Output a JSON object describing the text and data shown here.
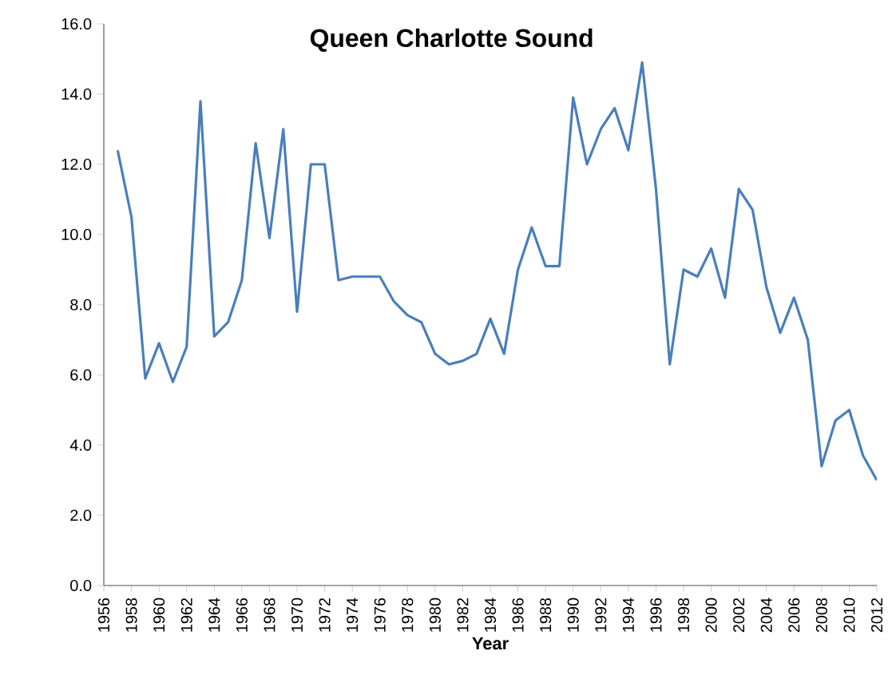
{
  "chart_data": {
    "type": "line",
    "title": "Queen Charlotte Sound",
    "xlabel": "Year",
    "x": [
      1957,
      1958,
      1959,
      1960,
      1961,
      1962,
      1963,
      1964,
      1965,
      1966,
      1967,
      1968,
      1969,
      1970,
      1971,
      1972,
      1973,
      1974,
      1975,
      1976,
      1977,
      1978,
      1979,
      1980,
      1981,
      1982,
      1983,
      1984,
      1985,
      1986,
      1987,
      1988,
      1989,
      1990,
      1991,
      1992,
      1993,
      1994,
      1995,
      1996,
      1997,
      1998,
      1999,
      2000,
      2001,
      2002,
      2003,
      2004,
      2005,
      2006,
      2007,
      2008,
      2009,
      2010,
      2011,
      2012
    ],
    "series": [
      {
        "color": "#4a7ebb",
        "values": [
          12.4,
          10.5,
          5.9,
          6.9,
          5.8,
          6.8,
          13.8,
          7.1,
          7.5,
          8.7,
          12.6,
          9.9,
          13.0,
          7.8,
          12.0,
          12.0,
          8.7,
          8.8,
          8.8,
          8.8,
          8.1,
          7.7,
          7.5,
          6.6,
          6.3,
          6.4,
          6.6,
          7.6,
          6.6,
          9.0,
          10.2,
          9.1,
          9.1,
          13.9,
          12.0,
          13.0,
          13.6,
          12.4,
          14.9,
          11.3,
          6.3,
          9.0,
          8.8,
          9.6,
          8.2,
          11.3,
          10.7,
          8.5,
          7.2,
          8.2,
          7.0,
          3.4,
          4.7,
          5.0,
          3.7,
          3.0
        ]
      }
    ],
    "xlim": [
      1956,
      2012
    ],
    "xticks": [
      1956,
      1958,
      1960,
      1962,
      1964,
      1966,
      1968,
      1970,
      1972,
      1974,
      1976,
      1978,
      1980,
      1982,
      1984,
      1986,
      1988,
      1990,
      1992,
      1994,
      1996,
      1998,
      2000,
      2002,
      2004,
      2006,
      2008,
      2010,
      2012
    ],
    "ylim": [
      0,
      16
    ],
    "yticks": [
      {
        "value": 0,
        "label": "0.0"
      },
      {
        "value": 2,
        "label": "2.0"
      },
      {
        "value": 4,
        "label": "4.0"
      },
      {
        "value": 6,
        "label": "6.0"
      },
      {
        "value": 8,
        "label": "8.0"
      },
      {
        "value": 10,
        "label": "10.0"
      },
      {
        "value": 12,
        "label": "12.0"
      },
      {
        "value": 14,
        "label": "14.0"
      },
      {
        "value": 16,
        "label": "16.0"
      }
    ],
    "grid": false,
    "legend": false,
    "marker": "none",
    "line_style": "solid"
  }
}
